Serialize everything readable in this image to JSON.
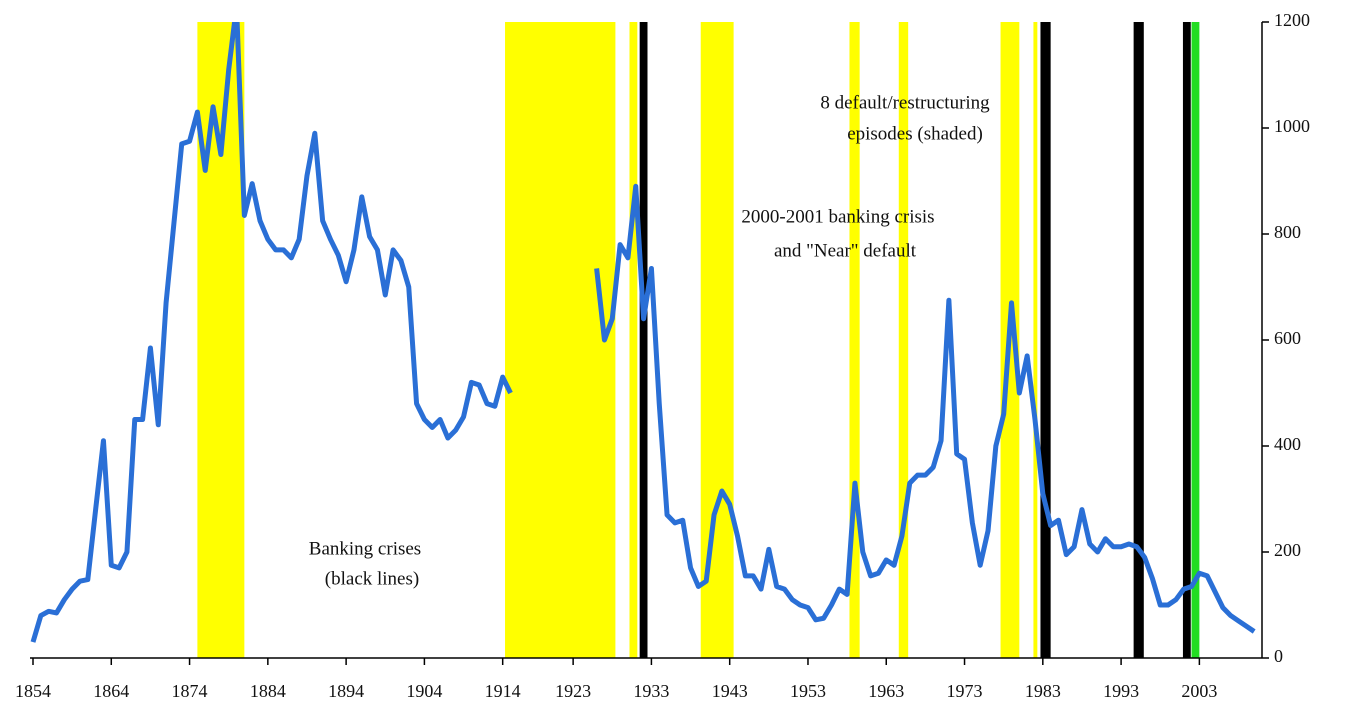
{
  "chart_data": {
    "type": "line",
    "x": [
      1854,
      1855,
      1856,
      1857,
      1858,
      1859,
      1860,
      1861,
      1862,
      1863,
      1864,
      1865,
      1866,
      1867,
      1868,
      1869,
      1870,
      1871,
      1872,
      1873,
      1874,
      1875,
      1876,
      1877,
      1878,
      1879,
      1880,
      1881,
      1882,
      1883,
      1884,
      1885,
      1886,
      1887,
      1888,
      1889,
      1890,
      1891,
      1892,
      1893,
      1894,
      1895,
      1896,
      1897,
      1898,
      1899,
      1900,
      1901,
      1902,
      1903,
      1904,
      1905,
      1906,
      1907,
      1908,
      1909,
      1910,
      1911,
      1912,
      1913,
      1914,
      1915,
      1916,
      1917,
      1918,
      1919,
      1920,
      1921,
      1922,
      1923,
      1924,
      1925,
      1926,
      1927,
      1928,
      1929,
      1930,
      1931,
      1932,
      1933,
      1934,
      1935,
      1936,
      1937,
      1938,
      1939,
      1940,
      1941,
      1942,
      1943,
      1944,
      1945,
      1946,
      1947,
      1948,
      1949,
      1950,
      1951,
      1952,
      1953,
      1954,
      1955,
      1956,
      1957,
      1958,
      1959,
      1960,
      1961,
      1962,
      1963,
      1964,
      1965,
      1966,
      1967,
      1968,
      1969,
      1970,
      1971,
      1972,
      1973,
      1974,
      1975,
      1976,
      1977,
      1978,
      1979,
      1980,
      1981,
      1982,
      1983,
      1984,
      1985,
      1986,
      1987,
      1988,
      1989,
      1990,
      1991,
      1992,
      1993,
      1994,
      1995,
      1996,
      1997,
      1998,
      1999,
      2000,
      2001,
      2002,
      2003,
      2004,
      2005,
      2006,
      2007,
      2008,
      2009,
      2010
    ],
    "series": [
      {
        "color": "#2a6fd6",
        "values": [
          30,
          80,
          88,
          85,
          110,
          130,
          145,
          148,
          280,
          410,
          175,
          170,
          200,
          450,
          450,
          585,
          440,
          670,
          820,
          970,
          975,
          1030,
          920,
          1040,
          950,
          1110,
          1230,
          835,
          895,
          825,
          790,
          770,
          770,
          755,
          790,
          910,
          990,
          825,
          790,
          760,
          710,
          770,
          870,
          795,
          770,
          685,
          770,
          750,
          700,
          480,
          450,
          435,
          450,
          415,
          430,
          455,
          520,
          515,
          480,
          475,
          530,
          500,
          null,
          null,
          null,
          null,
          null,
          null,
          null,
          null,
          null,
          null,
          735,
          600,
          640,
          780,
          755,
          890,
          640,
          735,
          480,
          270,
          255,
          260,
          170,
          135,
          145,
          270,
          315,
          290,
          230,
          155,
          155,
          130,
          205,
          135,
          130,
          110,
          100,
          95,
          72,
          75,
          100,
          130,
          120,
          330,
          200,
          155,
          160,
          185,
          175,
          230,
          330,
          345,
          345,
          360,
          410,
          675,
          385,
          375,
          255,
          175,
          240,
          400,
          460,
          670,
          500,
          570,
          450,
          310,
          250,
          260,
          195,
          210,
          280,
          215,
          200,
          225,
          210,
          210,
          215,
          210,
          190,
          150,
          100,
          100,
          110,
          130,
          135,
          160,
          155,
          125,
          95,
          80,
          70,
          60,
          50
        ]
      }
    ],
    "bands": [
      {
        "start": 1875,
        "end": 1881,
        "color": "#ffff00"
      },
      {
        "start": 1914.3,
        "end": 1928.4,
        "color": "#ffff00"
      },
      {
        "start": 1930.2,
        "end": 1931.2,
        "color": "#ffff00"
      },
      {
        "start": 1931.5,
        "end": 1932.5,
        "color": "#000000"
      },
      {
        "start": 1939.3,
        "end": 1943.5,
        "color": "#ffff00"
      },
      {
        "start": 1958.3,
        "end": 1959.6,
        "color": "#ffff00"
      },
      {
        "start": 1964.6,
        "end": 1965.8,
        "color": "#ffff00"
      },
      {
        "start": 1977.6,
        "end": 1980,
        "color": "#ffff00"
      },
      {
        "start": 1981.8,
        "end": 1982.3,
        "color": "#ffff00"
      },
      {
        "start": 1982.7,
        "end": 1984,
        "color": "#000000"
      },
      {
        "start": 1994.6,
        "end": 1995.9,
        "color": "#000000"
      },
      {
        "start": 2000.9,
        "end": 2001.9,
        "color": "#000000"
      },
      {
        "start": 2002,
        "end": 2003,
        "color": "#22dd22"
      }
    ],
    "annotations": [
      {
        "lines": [
          "8 default/restructuring",
          "episodes (shaded)"
        ]
      },
      {
        "lines": [
          "2000-2001 banking crisis",
          "and \"Near\" default"
        ]
      },
      {
        "lines": [
          "Banking crises",
          "(black lines)"
        ]
      }
    ],
    "xlim": [
      1854,
      2011
    ],
    "xticks": [
      1854,
      1864,
      1874,
      1884,
      1894,
      1904,
      1914,
      1923,
      1933,
      1943,
      1953,
      1963,
      1973,
      1983,
      1993,
      2003
    ],
    "ylim": [
      0,
      1200
    ],
    "yticks": [
      0,
      200,
      400,
      600,
      800,
      1000,
      1200
    ],
    "y_axis_side": "right"
  }
}
